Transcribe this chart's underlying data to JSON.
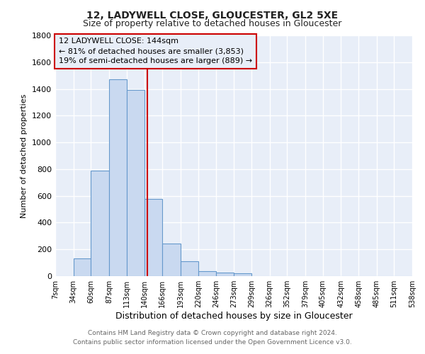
{
  "title": "12, LADYWELL CLOSE, GLOUCESTER, GL2 5XE",
  "subtitle": "Size of property relative to detached houses in Gloucester",
  "xlabel": "Distribution of detached houses by size in Gloucester",
  "ylabel": "Number of detached properties",
  "bar_color": "#c9d9f0",
  "bar_edge_color": "#6699cc",
  "bin_edges": [
    7,
    34,
    60,
    87,
    113,
    140,
    166,
    193,
    220,
    246,
    273,
    299,
    326,
    352,
    379,
    405,
    432,
    458,
    485,
    511,
    538
  ],
  "bin_labels": [
    "7sqm",
    "34sqm",
    "60sqm",
    "87sqm",
    "113sqm",
    "140sqm",
    "166sqm",
    "193sqm",
    "220sqm",
    "246sqm",
    "273sqm",
    "299sqm",
    "326sqm",
    "352sqm",
    "379sqm",
    "405sqm",
    "432sqm",
    "458sqm",
    "485sqm",
    "511sqm",
    "538sqm"
  ],
  "bar_heights": [
    0,
    130,
    790,
    1470,
    1390,
    575,
    245,
    110,
    35,
    25,
    20,
    0,
    0,
    0,
    0,
    0,
    0,
    0,
    0,
    0
  ],
  "vline_x": 144,
  "vline_color": "#cc0000",
  "ylim": [
    0,
    1800
  ],
  "yticks": [
    0,
    200,
    400,
    600,
    800,
    1000,
    1200,
    1400,
    1600,
    1800
  ],
  "annotation_title": "12 LADYWELL CLOSE: 144sqm",
  "annotation_line1": "← 81% of detached houses are smaller (3,853)",
  "annotation_line2": "19% of semi-detached houses are larger (889) →",
  "footer1": "Contains HM Land Registry data © Crown copyright and database right 2024.",
  "footer2": "Contains public sector information licensed under the Open Government Licence v3.0.",
  "fig_background": "#ffffff",
  "plot_background": "#e8eef8",
  "grid_color": "#ffffff"
}
